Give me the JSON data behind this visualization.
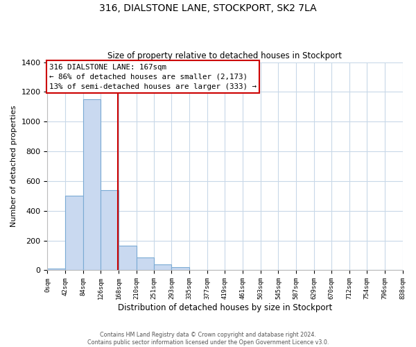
{
  "title": "316, DIALSTONE LANE, STOCKPORT, SK2 7LA",
  "subtitle": "Size of property relative to detached houses in Stockport",
  "xlabel": "Distribution of detached houses by size in Stockport",
  "ylabel": "Number of detached properties",
  "bar_edges": [
    0,
    42,
    84,
    126,
    168,
    210,
    251,
    293,
    335,
    377,
    419,
    461,
    503,
    545,
    587,
    629,
    670,
    712,
    754,
    796,
    838
  ],
  "bar_heights": [
    10,
    500,
    1150,
    540,
    165,
    85,
    38,
    20,
    0,
    0,
    0,
    0,
    0,
    0,
    0,
    0,
    0,
    0,
    0,
    0
  ],
  "bar_color": "#c9d9f0",
  "bar_edgecolor": "#7aaad4",
  "property_line_x": 167,
  "property_line_color": "#cc0000",
  "ylim": [
    0,
    1400
  ],
  "yticks": [
    0,
    200,
    400,
    600,
    800,
    1000,
    1200,
    1400
  ],
  "tick_labels": [
    "0sqm",
    "42sqm",
    "84sqm",
    "126sqm",
    "168sqm",
    "210sqm",
    "251sqm",
    "293sqm",
    "335sqm",
    "377sqm",
    "419sqm",
    "461sqm",
    "503sqm",
    "545sqm",
    "587sqm",
    "629sqm",
    "670sqm",
    "712sqm",
    "754sqm",
    "796sqm",
    "838sqm"
  ],
  "annotation_title": "316 DIALSTONE LANE: 167sqm",
  "annotation_line1": "← 86% of detached houses are smaller (2,173)",
  "annotation_line2": "13% of semi-detached houses are larger (333) →",
  "annotation_box_color": "#ffffff",
  "annotation_box_edgecolor": "#cc0000",
  "footer_line1": "Contains HM Land Registry data © Crown copyright and database right 2024.",
  "footer_line2": "Contains public sector information licensed under the Open Government Licence v3.0.",
  "background_color": "#ffffff",
  "grid_color": "#c8d8e8"
}
